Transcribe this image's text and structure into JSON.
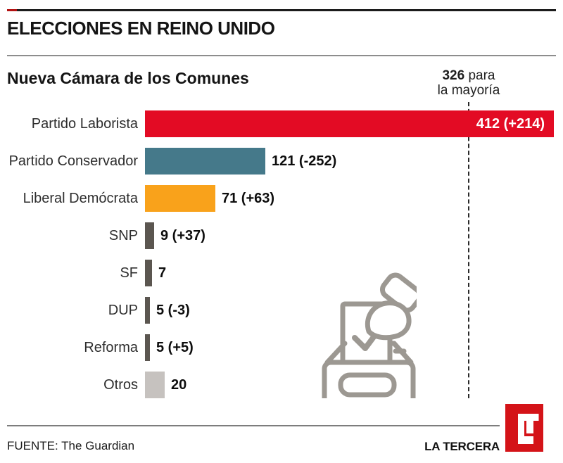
{
  "header": {
    "title": "ELECCIONES EN REINO UNIDO"
  },
  "chart": {
    "subtitle": "Nueva Cámara de los Comunes",
    "majority": {
      "value": "326",
      "suffix": " para",
      "line2": "la mayoría"
    }
  },
  "chart_data": {
    "type": "bar",
    "orientation": "horizontal",
    "title": "Nueva Cámara de los Comunes",
    "categories": [
      "Partido Laborista",
      "Partido Conservador",
      "Liberal Demócrata",
      "SNP",
      "SF",
      "DUP",
      "Reforma",
      "Otros"
    ],
    "values": [
      412,
      121,
      71,
      9,
      7,
      5,
      5,
      20
    ],
    "value_labels": [
      "412 (+214)",
      "121 (-252)",
      "71 (+63)",
      "9 (+37)",
      "7",
      "5 (-3)",
      "5 (+5)",
      "20"
    ],
    "value_inside": [
      true,
      false,
      false,
      false,
      false,
      false,
      false,
      false
    ],
    "bar_colors": [
      "#e30b24",
      "#45798a",
      "#f9a21b",
      "#5b5650",
      "#5b5650",
      "#5b5650",
      "#5b5650",
      "#c6c2bf"
    ],
    "annotation": {
      "x_value": 326,
      "text": "326 para la mayoría",
      "style": "vertical-dashed-line"
    },
    "xlim": [
      0,
      420
    ],
    "axes_hidden": true,
    "legend": "none"
  },
  "icons": {
    "ballot_box": "ballot-box-icon",
    "logo_text": "LT"
  },
  "footer": {
    "source": "FUENTE: The Guardian",
    "brand": "LA TERCERA"
  },
  "colors": {
    "labour_red": "#e30b24",
    "conservative_teal": "#45798a",
    "libdem_orange": "#f9a21b",
    "minor_gray": "#5b5650",
    "others_gray": "#c6c2bf",
    "icon_gray": "#9c9892",
    "logo_red": "#d41318"
  }
}
